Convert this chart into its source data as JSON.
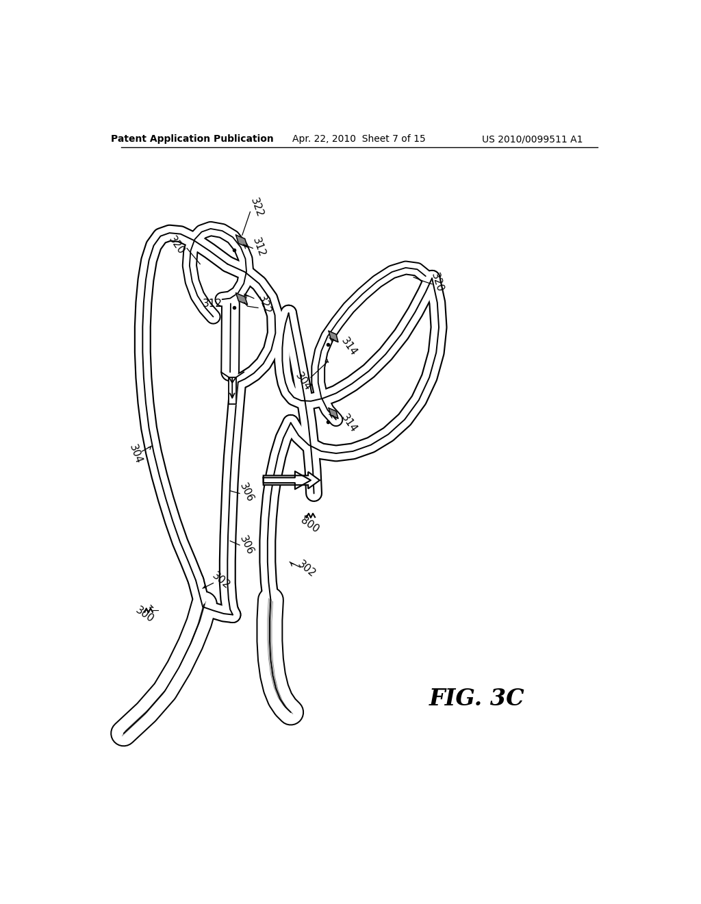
{
  "header_left": "Patent Application Publication",
  "header_center": "Apr. 22, 2010  Sheet 7 of 15",
  "header_right": "US 2010/0099511 A1",
  "bg_color": "#ffffff",
  "fig_label": "FIG. 3C"
}
